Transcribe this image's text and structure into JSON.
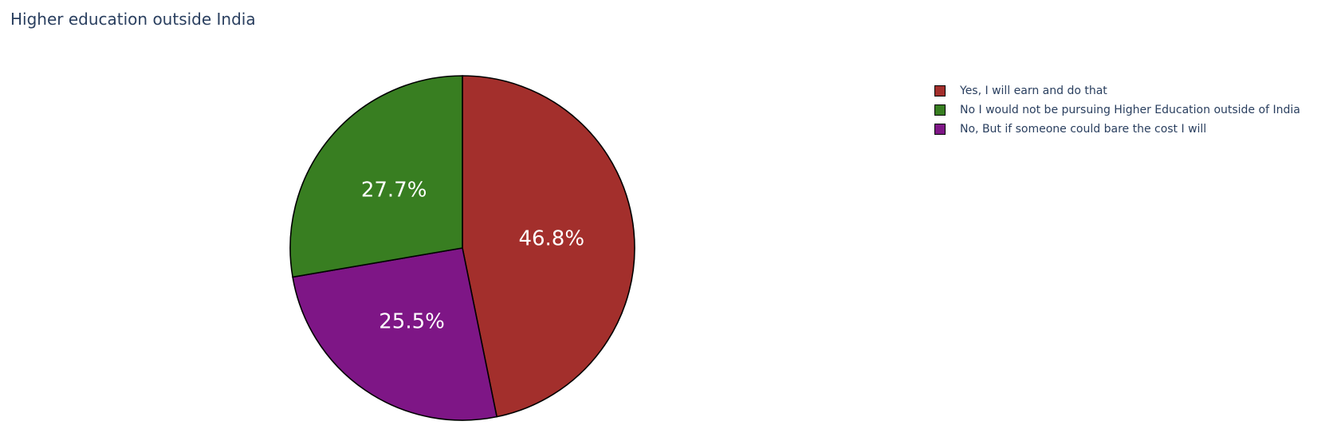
{
  "chart_data": {
    "type": "pie",
    "title": "Higher education outside India",
    "slices": [
      {
        "label": "Yes, I will earn and do that",
        "value": 46.8,
        "text": "46.8%",
        "color": "#a32f2c"
      },
      {
        "label": "No, But if someone could bare the cost I will",
        "value": 25.5,
        "text": "25.5%",
        "color": "#7e1686"
      },
      {
        "label": "No I would not be pursuing Higher Education outside of India",
        "value": 27.7,
        "text": "27.7%",
        "color": "#387e21"
      }
    ],
    "legend": [
      {
        "label": "Yes, I will earn and do that",
        "color": "#a32f2c"
      },
      {
        "label": "No I would not be pursuing Higher Education outside of India",
        "color": "#387e21"
      },
      {
        "label": "No, But if someone could bare the cost I will",
        "color": "#7e1686"
      }
    ],
    "legend_position": "top-right",
    "slice_border_color": "#000000",
    "label_color": "#ffffff"
  }
}
